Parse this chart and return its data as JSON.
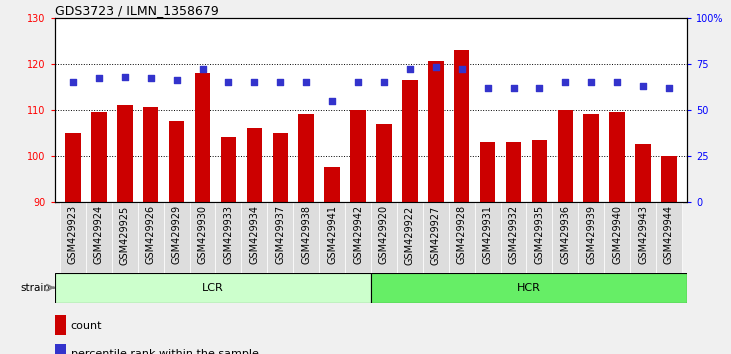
{
  "title": "GDS3723 / ILMN_1358679",
  "categories": [
    "GSM429923",
    "GSM429924",
    "GSM429925",
    "GSM429926",
    "GSM429929",
    "GSM429930",
    "GSM429933",
    "GSM429934",
    "GSM429937",
    "GSM429938",
    "GSM429941",
    "GSM429942",
    "GSM429920",
    "GSM429922",
    "GSM429927",
    "GSM429928",
    "GSM429931",
    "GSM429932",
    "GSM429935",
    "GSM429936",
    "GSM429939",
    "GSM429940",
    "GSM429943",
    "GSM429944"
  ],
  "bar_values": [
    105.0,
    109.5,
    111.0,
    110.5,
    107.5,
    118.0,
    104.0,
    106.0,
    105.0,
    109.0,
    97.5,
    110.0,
    107.0,
    116.5,
    120.5,
    123.0,
    103.0,
    103.0,
    103.5,
    110.0,
    109.0,
    109.5,
    102.5,
    100.0
  ],
  "percentile_values": [
    65,
    67,
    68,
    67,
    66,
    72,
    65,
    65,
    65,
    65,
    55,
    65,
    65,
    72,
    73,
    72,
    62,
    62,
    62,
    65,
    65,
    65,
    63,
    62
  ],
  "bar_color": "#cc0000",
  "percentile_color": "#3333cc",
  "ylim_left": [
    90,
    130
  ],
  "ylim_right": [
    0,
    100
  ],
  "yticks_left": [
    90,
    100,
    110,
    120,
    130
  ],
  "yticks_right": [
    0,
    25,
    50,
    75,
    100
  ],
  "ytick_labels_right": [
    "0",
    "25",
    "50",
    "75",
    "100%"
  ],
  "grid_values": [
    100,
    110,
    120
  ],
  "lcr_label": "LCR",
  "hcr_label": "HCR",
  "lcr_count": 12,
  "hcr_count": 12,
  "lcr_color": "#ccffcc",
  "hcr_color": "#66ee66",
  "strain_label": "strain",
  "legend_count": "count",
  "legend_percentile": "percentile rank within the sample",
  "fig_bg_color": "#f0f0f0",
  "plot_bg_color": "#ffffff",
  "xtick_bg_color": "#dddddd",
  "title_fontsize": 9,
  "tick_label_fontsize": 7,
  "legend_fontsize": 8,
  "bar_width": 0.6
}
